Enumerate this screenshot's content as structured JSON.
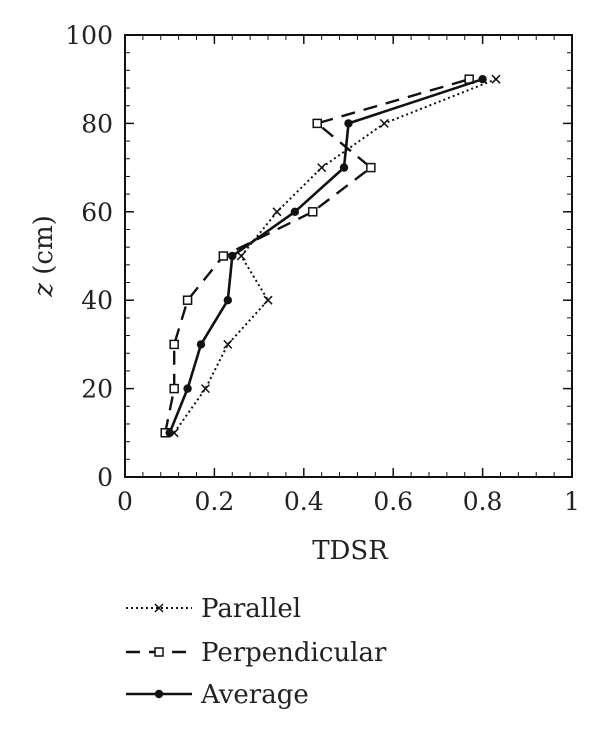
{
  "chart_data": {
    "type": "line",
    "title": "",
    "xlabel": "TDSR",
    "ylabel_italic": "z",
    "ylabel_unit": " (cm)",
    "xlim": [
      0,
      1
    ],
    "ylim": [
      0,
      100
    ],
    "x_ticks": [
      0,
      0.2,
      0.4,
      0.6,
      0.8,
      1
    ],
    "x_tick_labels": [
      "0",
      "0.2",
      "0.4",
      "0.6",
      "0.8",
      "1"
    ],
    "y_ticks": [
      0,
      20,
      40,
      60,
      80,
      100
    ],
    "y_tick_labels": [
      "0",
      "20",
      "40",
      "60",
      "80",
      "100"
    ],
    "grid": false,
    "legend_position": "bottom",
    "series": [
      {
        "name": "Parallel",
        "style": "dotted",
        "marker": "x",
        "points": [
          [
            0.11,
            10
          ],
          [
            0.18,
            20
          ],
          [
            0.23,
            30
          ],
          [
            0.32,
            40
          ],
          [
            0.26,
            50
          ],
          [
            0.34,
            60
          ],
          [
            0.44,
            70
          ],
          [
            0.58,
            80
          ],
          [
            0.83,
            90
          ]
        ]
      },
      {
        "name": "Perpendicular",
        "style": "dashed",
        "marker": "square",
        "points": [
          [
            0.09,
            10
          ],
          [
            0.11,
            20
          ],
          [
            0.11,
            30
          ],
          [
            0.14,
            40
          ],
          [
            0.22,
            50
          ],
          [
            0.42,
            60
          ],
          [
            0.55,
            70
          ],
          [
            0.43,
            80
          ],
          [
            0.77,
            90
          ]
        ]
      },
      {
        "name": "Average",
        "style": "solid",
        "marker": "dot",
        "points": [
          [
            0.1,
            10
          ],
          [
            0.14,
            20
          ],
          [
            0.17,
            30
          ],
          [
            0.23,
            40
          ],
          [
            0.24,
            50
          ],
          [
            0.38,
            60
          ],
          [
            0.49,
            70
          ],
          [
            0.5,
            80
          ],
          [
            0.8,
            90
          ]
        ]
      }
    ]
  }
}
